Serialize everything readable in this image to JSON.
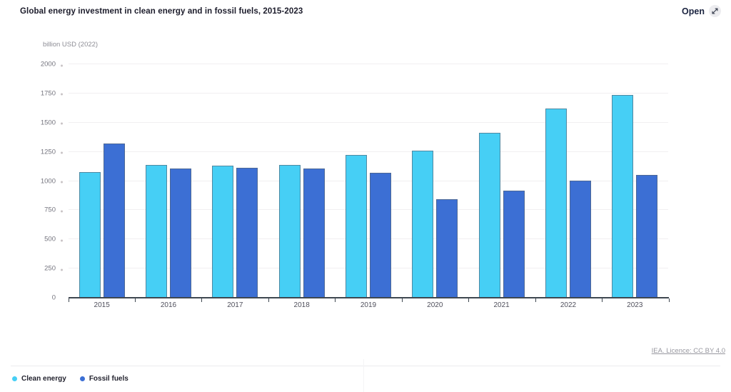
{
  "header": {
    "title": "Global energy investment in clean energy and in fossil fuels, 2015-2023",
    "open_label": "Open"
  },
  "chart_data": {
    "type": "bar",
    "title": "Global energy investment in clean energy and in fossil fuels, 2015-2023",
    "unit_label": "billion USD (2022)",
    "categories": [
      "2015",
      "2016",
      "2017",
      "2018",
      "2019",
      "2020",
      "2021",
      "2022",
      "2023"
    ],
    "series": [
      {
        "name": "Clean energy",
        "color": "#46CFF5",
        "values": [
          1075,
          1135,
          1130,
          1140,
          1225,
          1260,
          1410,
          1620,
          1740
        ]
      },
      {
        "name": "Fossil fuels",
        "color": "#3C6FD4",
        "values": [
          1320,
          1105,
          1115,
          1110,
          1070,
          845,
          915,
          1005,
          1050
        ]
      }
    ],
    "ylim": [
      0,
      2000
    ],
    "yticks": [
      0,
      250,
      500,
      750,
      1000,
      1250,
      1500,
      1750,
      2000
    ],
    "grid": true,
    "legend_position": "bottom-left"
  },
  "footer": {
    "license": "IEA. Licence: CC BY 4.0"
  }
}
